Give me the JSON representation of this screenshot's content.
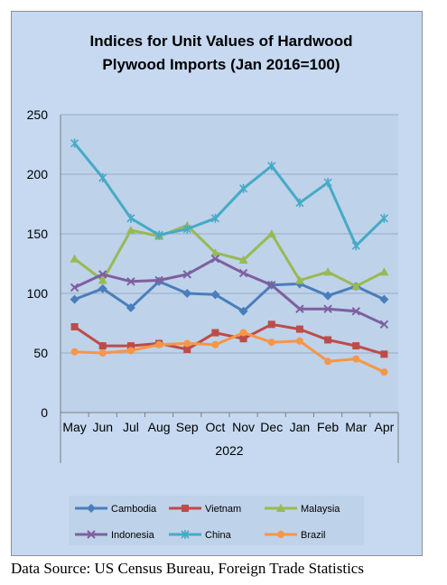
{
  "chart_data": {
    "type": "line",
    "title": [
      "Indices for Unit Values of Hardwood",
      "Plywood Imports (Jan 2016=100)"
    ],
    "x": [
      "May",
      "Jun",
      "Jul",
      "Aug",
      "Sep",
      "Oct",
      "Nov",
      "Dec",
      "Jan",
      "Feb",
      "Mar",
      "Apr"
    ],
    "x_group_label": "2022",
    "ylim": [
      0,
      250
    ],
    "yticks": [
      0,
      50,
      100,
      150,
      200,
      250
    ],
    "grid": true,
    "legend_position": "bottom",
    "series": [
      {
        "name": "Cambodia",
        "color": "#4a7ebb",
        "marker": "diamond",
        "values": [
          95,
          104,
          88,
          110,
          100,
          99,
          85,
          107,
          108,
          98,
          106,
          95
        ]
      },
      {
        "name": "Vietnam",
        "color": "#be4b48",
        "marker": "square",
        "values": [
          72,
          56,
          56,
          58,
          53,
          67,
          62,
          74,
          70,
          61,
          56,
          49
        ]
      },
      {
        "name": "Malaysia",
        "color": "#98b954",
        "marker": "triangle",
        "values": [
          129,
          111,
          153,
          148,
          157,
          134,
          128,
          150,
          111,
          118,
          106,
          118
        ]
      },
      {
        "name": "Indonesia",
        "color": "#7d60a0",
        "marker": "x",
        "values": [
          105,
          116,
          110,
          111,
          116,
          129,
          117,
          107,
          87,
          87,
          85,
          74
        ]
      },
      {
        "name": "China",
        "color": "#46aac5",
        "marker": "star",
        "values": [
          226,
          197,
          163,
          149,
          154,
          163,
          188,
          207,
          176,
          193,
          140,
          163
        ]
      },
      {
        "name": "Brazil",
        "color": "#f79646",
        "marker": "circle",
        "values": [
          51,
          50,
          52,
          57,
          58,
          57,
          67,
          59,
          60,
          43,
          45,
          34
        ]
      }
    ]
  },
  "source_note": "Data Source: US Census Bureau, Foreign Trade Statistics"
}
